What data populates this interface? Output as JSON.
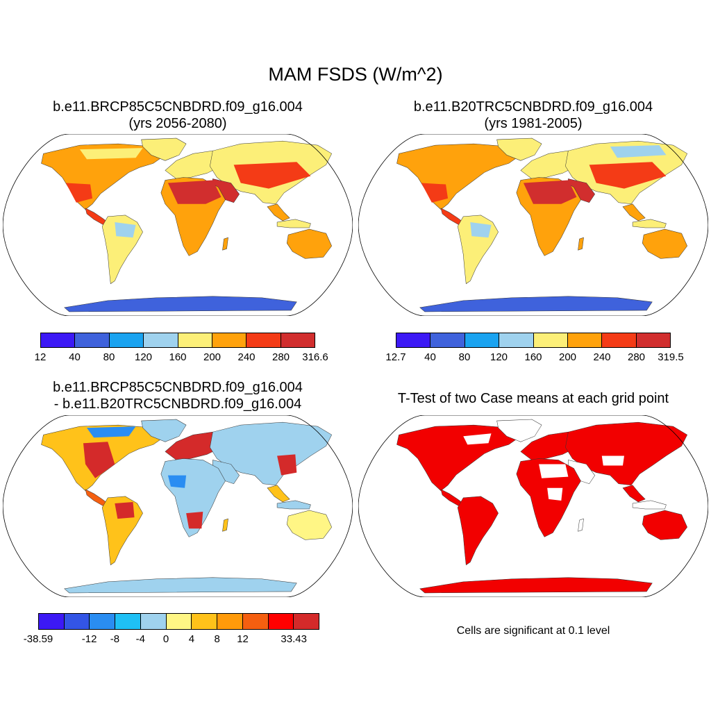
{
  "figure": {
    "title": "MAM FSDS (W/m^2)"
  },
  "chart_data": [
    {
      "type": "heatmap",
      "panel": "case1",
      "title_line1": "b.e11.BRCP85C5CNBDRD.f09_g16.004",
      "title_line2": "(yrs 2056-2080)",
      "projection": "Robinson global map",
      "colorbar": {
        "labels": [
          "12",
          "40",
          "80",
          "120",
          "160",
          "200",
          "240",
          "280",
          "316.6"
        ],
        "colors": [
          "#3c19f5",
          "#3f62dc",
          "#1aa3f0",
          "#9fd2ee",
          "#fcef78",
          "#ffa20c",
          "#f43b16",
          "#d12e2e"
        ]
      }
    },
    {
      "type": "heatmap",
      "panel": "case2",
      "title_line1": "b.e11.B20TRC5CNBDRD.f09_g16.004",
      "title_line2": "(yrs 1981-2005)",
      "projection": "Robinson global map",
      "colorbar": {
        "labels": [
          "12.7",
          "40",
          "80",
          "120",
          "160",
          "200",
          "240",
          "280",
          "319.5"
        ],
        "colors": [
          "#3c19f5",
          "#3f62dc",
          "#1aa3f0",
          "#9fd2ee",
          "#fcef78",
          "#ffa20c",
          "#f43b16",
          "#d12e2e"
        ]
      }
    },
    {
      "type": "heatmap",
      "panel": "difference",
      "title_line1": "b.e11.BRCP85C5CNBDRD.f09_g16.004",
      "title_line2": "- b.e11.B20TRC5CNBDRD.f09_g16.004",
      "projection": "Robinson global map",
      "colorbar": {
        "labels": [
          "-38.59",
          "",
          "-12",
          "-8",
          "-4",
          "0",
          "4",
          "8",
          "12",
          "",
          "33.43"
        ],
        "colors": [
          "#3c19f5",
          "#3355e6",
          "#2a8df2",
          "#1fc0f5",
          "#9fd2ee",
          "#fff685",
          "#ffc21a",
          "#ff9a0a",
          "#f55f10",
          "#ff0000",
          "#d42a2a"
        ]
      }
    },
    {
      "type": "heatmap",
      "panel": "ttest",
      "title_line1": "T-Test of two Case means at each grid point",
      "note": "Cells are significant at 0.1 level",
      "projection": "Robinson global map",
      "significance_color": "#f20000",
      "significance_level": 0.1
    }
  ]
}
